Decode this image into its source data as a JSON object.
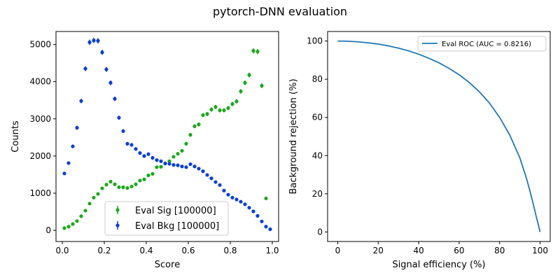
{
  "figure": {
    "suptitle": "pytorch-DNN evaluation"
  },
  "colors": {
    "sig": "#1aaa1a",
    "bkg": "#0a3fd6",
    "roc": "#1f77b4"
  },
  "chart_data": [
    {
      "type": "scatter",
      "xlabel": "Score",
      "ylabel": "Counts",
      "xlim": [
        -0.03,
        1.03
      ],
      "ylim": [
        -300,
        5350
      ],
      "xticks": [
        0.0,
        0.2,
        0.4,
        0.6,
        0.8,
        1.0
      ],
      "yticks": [
        0,
        1000,
        2000,
        3000,
        4000,
        5000
      ],
      "legend_position": "lower-center",
      "series": [
        {
          "name": "Eval Sig [100000]",
          "x": [
            0.01,
            0.03,
            0.05,
            0.07,
            0.09,
            0.11,
            0.13,
            0.15,
            0.17,
            0.19,
            0.21,
            0.23,
            0.25,
            0.27,
            0.29,
            0.31,
            0.33,
            0.35,
            0.37,
            0.39,
            0.41,
            0.43,
            0.45,
            0.47,
            0.49,
            0.51,
            0.53,
            0.55,
            0.57,
            0.59,
            0.61,
            0.63,
            0.65,
            0.67,
            0.69,
            0.71,
            0.73,
            0.75,
            0.77,
            0.79,
            0.81,
            0.83,
            0.85,
            0.87,
            0.89,
            0.91,
            0.93,
            0.95,
            0.97
          ],
          "y": [
            60,
            100,
            170,
            250,
            380,
            530,
            720,
            880,
            980,
            1130,
            1230,
            1310,
            1240,
            1160,
            1160,
            1140,
            1180,
            1240,
            1340,
            1370,
            1480,
            1520,
            1700,
            1710,
            1800,
            1860,
            1980,
            2060,
            2140,
            2330,
            2570,
            2800,
            2850,
            3100,
            3130,
            3250,
            3320,
            3230,
            3230,
            3290,
            3400,
            3470,
            3740,
            3970,
            4180,
            4830,
            4810,
            3890,
            860
          ]
        },
        {
          "name": "Eval Bkg [100000]",
          "x": [
            0.01,
            0.03,
            0.05,
            0.07,
            0.09,
            0.11,
            0.13,
            0.15,
            0.17,
            0.19,
            0.21,
            0.23,
            0.25,
            0.27,
            0.29,
            0.31,
            0.33,
            0.35,
            0.37,
            0.39,
            0.41,
            0.43,
            0.45,
            0.47,
            0.49,
            0.51,
            0.53,
            0.55,
            0.57,
            0.59,
            0.61,
            0.63,
            0.65,
            0.67,
            0.69,
            0.71,
            0.73,
            0.75,
            0.77,
            0.79,
            0.81,
            0.83,
            0.85,
            0.87,
            0.89,
            0.91,
            0.93,
            0.95,
            0.97,
            0.99
          ],
          "y": [
            1530,
            1810,
            2260,
            2760,
            3480,
            4350,
            5060,
            5110,
            5100,
            4790,
            4330,
            3970,
            3540,
            3030,
            2670,
            2330,
            2300,
            2190,
            2080,
            2000,
            2050,
            1950,
            1890,
            1860,
            1800,
            1790,
            1760,
            1750,
            1720,
            1700,
            1780,
            1720,
            1660,
            1590,
            1490,
            1400,
            1300,
            1220,
            1070,
            960,
            880,
            830,
            770,
            700,
            610,
            510,
            390,
            240,
            100,
            30
          ]
        }
      ]
    },
    {
      "type": "line",
      "xlabel": "Signal efficiency (%)",
      "ylabel": "Background rejection (%)",
      "xlim": [
        -5,
        105
      ],
      "ylim": [
        -5,
        105
      ],
      "xticks": [
        0,
        20,
        40,
        60,
        80,
        100
      ],
      "yticks": [
        0,
        20,
        40,
        60,
        80,
        100
      ],
      "legend_position": "top-right",
      "series": [
        {
          "name": "Eval ROC (AUC = 0.8216)",
          "x": [
            0,
            5,
            10,
            15,
            20,
            25,
            30,
            35,
            40,
            45,
            50,
            55,
            60,
            65,
            70,
            75,
            80,
            85,
            90,
            93,
            95,
            97,
            98,
            99,
            99.5,
            100
          ],
          "y": [
            100,
            99.9,
            99.6,
            99.1,
            98.4,
            97.5,
            96.3,
            94.9,
            93.1,
            91.0,
            88.6,
            85.7,
            82.3,
            78.3,
            73.4,
            67.5,
            60.0,
            50.8,
            38.8,
            29.0,
            21.5,
            13.0,
            8.5,
            4.5,
            2.2,
            0
          ]
        }
      ]
    }
  ]
}
